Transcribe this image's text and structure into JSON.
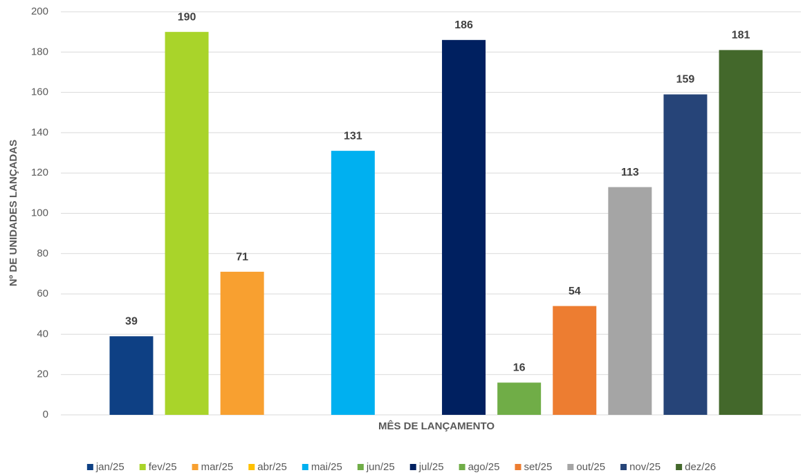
{
  "chart_data": {
    "type": "bar",
    "y_label": "Nº DE UNIDADES LANÇADAS",
    "x_label": "MÊS DE LANÇAMENTO",
    "ylim": [
      0,
      200
    ],
    "yticks": [
      0,
      20,
      40,
      60,
      80,
      100,
      120,
      140,
      160,
      180,
      200
    ],
    "grid": true,
    "legend": "bottom",
    "series": [
      {
        "name": "jan/25",
        "color": "#0e4084",
        "values": [
          39
        ]
      },
      {
        "name": "fev/25",
        "color": "#a9d42a",
        "values": [
          190
        ]
      },
      {
        "name": "mar/25",
        "color": "#f8a030",
        "values": [
          71
        ]
      },
      {
        "name": "abr/25",
        "color": "#ffc000",
        "values": [
          null
        ]
      },
      {
        "name": "mai/25",
        "color": "#00b0f0",
        "values": [
          131
        ]
      },
      {
        "name": "jun/25",
        "color": "#70ad47",
        "values": [
          null
        ]
      },
      {
        "name": "jul/25",
        "color": "#002060",
        "values": [
          186
        ]
      },
      {
        "name": "ago/25",
        "color": "#70ad47",
        "values": [
          16
        ]
      },
      {
        "name": "set/25",
        "color": "#ed7d31",
        "values": [
          54
        ]
      },
      {
        "name": "out/25",
        "color": "#a5a5a5",
        "values": [
          113
        ]
      },
      {
        "name": "nov/25",
        "color": "#264478",
        "values": [
          159
        ]
      },
      {
        "name": "dez/26",
        "color": "#43682b",
        "values": [
          181
        ]
      }
    ]
  }
}
